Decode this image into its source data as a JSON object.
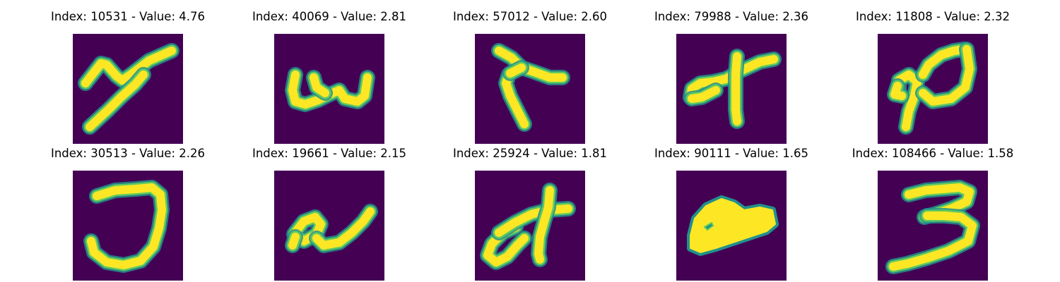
{
  "figure": {
    "panels": [
      {
        "title": "Index: 10531 - Value: 4.76",
        "glyph": "x-like"
      },
      {
        "title": "Index: 40069 - Value: 2.81",
        "glyph": "u-like"
      },
      {
        "title": "Index: 57012 - Value: 2.60",
        "glyph": "y-like"
      },
      {
        "title": "Index: 79988 - Value: 2.36",
        "glyph": "t-like"
      },
      {
        "title": "Index: 11808 - Value: 2.32",
        "glyph": "n-like"
      },
      {
        "title": "Index: 30513 - Value: 2.26",
        "glyph": "j-like"
      },
      {
        "title": "Index: 19661 - Value: 2.15",
        "glyph": "a-like"
      },
      {
        "title": "Index: 25924 - Value: 1.81",
        "glyph": "ct-like"
      },
      {
        "title": "Index: 90111 - Value: 1.65",
        "glyph": "blob"
      },
      {
        "title": "Index: 108466 - Value: 1.58",
        "glyph": "3-like"
      }
    ]
  },
  "colors": {
    "background": "#440154",
    "stroke_edge": "#21918c",
    "stroke_mid": "#5ec962",
    "stroke_core": "#fde725"
  }
}
